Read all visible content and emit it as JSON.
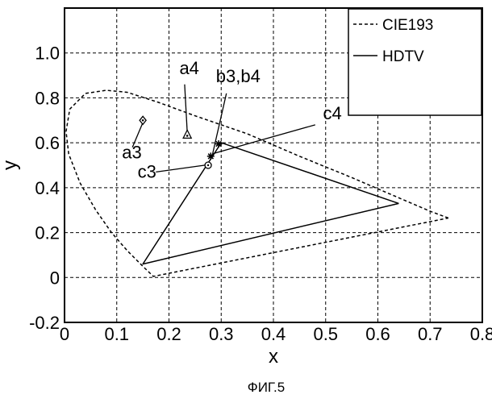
{
  "figure_caption": "ФИГ.5",
  "chart_data": {
    "type": "line",
    "title": "",
    "xlabel": "x",
    "ylabel": "y",
    "xlim": [
      0,
      0.8
    ],
    "ylim": [
      -0.2,
      1.2
    ],
    "x_ticks": [
      "0",
      "0.1",
      "0.2",
      "0.3",
      "0.4",
      "0.5",
      "0.6",
      "0.7",
      "0.8"
    ],
    "y_ticks": [
      "-0.2",
      "0",
      "0.2",
      "0.4",
      "0.6",
      "0.8",
      "1.0"
    ],
    "x_tick_values": [
      0,
      0.1,
      0.2,
      0.3,
      0.4,
      0.5,
      0.6,
      0.7,
      0.8
    ],
    "y_tick_values": [
      -0.2,
      0,
      0.2,
      0.4,
      0.6,
      0.8,
      1.0
    ],
    "grid": true,
    "legend_position": "top-right",
    "series": [
      {
        "name": "CIE193",
        "style": "dashed",
        "color": "#000000",
        "points": [
          [
            0.735,
            0.265
          ],
          [
            0.7,
            0.295
          ],
          [
            0.65,
            0.345
          ],
          [
            0.55,
            0.445
          ],
          [
            0.45,
            0.54
          ],
          [
            0.35,
            0.64
          ],
          [
            0.25,
            0.72
          ],
          [
            0.18,
            0.78
          ],
          [
            0.12,
            0.825
          ],
          [
            0.08,
            0.834
          ],
          [
            0.04,
            0.82
          ],
          [
            0.01,
            0.75
          ],
          [
            0.003,
            0.65
          ],
          [
            0.008,
            0.55
          ],
          [
            0.03,
            0.42
          ],
          [
            0.06,
            0.3
          ],
          [
            0.09,
            0.2
          ],
          [
            0.12,
            0.12
          ],
          [
            0.15,
            0.05
          ],
          [
            0.17,
            0.005
          ],
          [
            0.735,
            0.265
          ]
        ]
      },
      {
        "name": "HDTV",
        "style": "solid",
        "color": "#000000",
        "points": [
          [
            0.64,
            0.33
          ],
          [
            0.3,
            0.6
          ],
          [
            0.15,
            0.06
          ],
          [
            0.64,
            0.33
          ]
        ]
      }
    ],
    "markers": [
      {
        "label": "a3",
        "x": 0.15,
        "y": 0.7,
        "symbol": "diamond"
      },
      {
        "label": "a4",
        "x": 0.235,
        "y": 0.635,
        "symbol": "triangle"
      },
      {
        "label": "b3,b4",
        "x": 0.295,
        "y": 0.595,
        "symbol": "star"
      },
      {
        "label": "c4",
        "x": 0.28,
        "y": 0.54,
        "symbol": "star"
      },
      {
        "label": "c3",
        "x": 0.275,
        "y": 0.5,
        "symbol": "circle"
      }
    ],
    "annotations": [
      {
        "text": "a4",
        "text_x": 0.22,
        "text_y": 0.905,
        "line_from": [
          0.23,
          0.86
        ],
        "line_to": [
          0.235,
          0.645
        ]
      },
      {
        "text": "b3,b4",
        "text_x": 0.29,
        "text_y": 0.87,
        "line_from": [
          0.31,
          0.82
        ],
        "line_to": [
          0.283,
          0.545
        ]
      },
      {
        "text": "c4",
        "text_x": 0.495,
        "text_y": 0.705,
        "line_from": [
          0.48,
          0.68
        ],
        "line_to": [
          0.285,
          0.552
        ]
      },
      {
        "text": "a3",
        "text_x": 0.11,
        "text_y": 0.53,
        "line_from": [
          0.13,
          0.58
        ],
        "line_to": [
          0.15,
          0.69
        ]
      },
      {
        "text": "c3",
        "text_x": 0.14,
        "text_y": 0.445,
        "line_from": [
          0.175,
          0.47
        ],
        "line_to": [
          0.268,
          0.5
        ]
      }
    ]
  }
}
